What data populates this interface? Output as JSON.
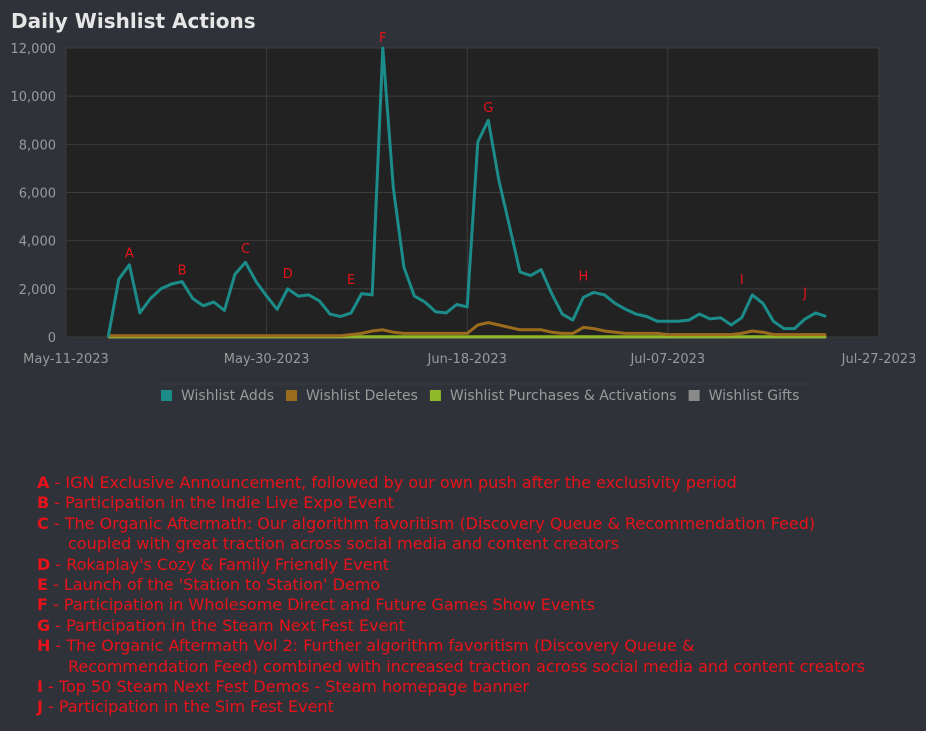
{
  "chart_data": {
    "type": "line",
    "title": "Daily Wishlist Actions",
    "x": [
      "2023-05-15",
      "2023-05-16",
      "2023-05-17",
      "2023-05-18",
      "2023-05-19",
      "2023-05-20",
      "2023-05-21",
      "2023-05-22",
      "2023-05-23",
      "2023-05-24",
      "2023-05-25",
      "2023-05-26",
      "2023-05-27",
      "2023-05-28",
      "2023-05-29",
      "2023-05-30",
      "2023-05-31",
      "2023-06-01",
      "2023-06-02",
      "2023-06-03",
      "2023-06-04",
      "2023-06-05",
      "2023-06-06",
      "2023-06-07",
      "2023-06-08",
      "2023-06-09",
      "2023-06-10",
      "2023-06-11",
      "2023-06-12",
      "2023-06-13",
      "2023-06-14",
      "2023-06-15",
      "2023-06-16",
      "2023-06-17",
      "2023-06-18",
      "2023-06-19",
      "2023-06-20",
      "2023-06-21",
      "2023-06-22",
      "2023-06-23",
      "2023-06-24",
      "2023-06-25",
      "2023-06-26",
      "2023-06-27",
      "2023-06-28",
      "2023-06-29",
      "2023-06-30",
      "2023-07-01",
      "2023-07-02",
      "2023-07-03",
      "2023-07-04",
      "2023-07-05",
      "2023-07-06",
      "2023-07-07",
      "2023-07-08",
      "2023-07-09",
      "2023-07-10",
      "2023-07-11",
      "2023-07-12",
      "2023-07-13",
      "2023-07-14",
      "2023-07-15",
      "2023-07-16",
      "2023-07-17",
      "2023-07-18",
      "2023-07-19",
      "2023-07-20",
      "2023-07-21",
      "2023-07-22"
    ],
    "series": [
      {
        "name": "Wishlist Adds",
        "color": "#1b8c89",
        "values": [
          0,
          2400,
          3000,
          1000,
          1600,
          2000,
          2200,
          2300,
          1600,
          1300,
          1450,
          1100,
          2600,
          3100,
          2300,
          1700,
          1150,
          2000,
          1700,
          1750,
          1500,
          950,
          850,
          1000,
          1800,
          1750,
          12000,
          6200,
          2900,
          1700,
          1450,
          1050,
          1000,
          1350,
          1250,
          8100,
          9000,
          6500,
          4600,
          2700,
          2550,
          2800,
          1800,
          950,
          700,
          1650,
          1850,
          1750,
          1400,
          1150,
          950,
          850,
          650,
          650,
          650,
          700,
          950,
          750,
          800,
          500,
          800,
          1750,
          1400,
          650,
          350,
          350,
          750,
          1000,
          850
        ]
      },
      {
        "name": "Wishlist Deletes",
        "color": "#9c6c1e",
        "values": [
          50,
          50,
          50,
          50,
          50,
          50,
          50,
          50,
          50,
          50,
          50,
          50,
          50,
          50,
          50,
          50,
          50,
          50,
          50,
          50,
          50,
          50,
          50,
          100,
          150,
          250,
          300,
          200,
          150,
          150,
          150,
          150,
          150,
          150,
          150,
          500,
          600,
          500,
          400,
          300,
          300,
          300,
          200,
          150,
          150,
          400,
          350,
          250,
          200,
          150,
          150,
          150,
          150,
          100,
          100,
          100,
          100,
          100,
          100,
          100,
          150,
          250,
          200,
          100,
          100,
          100,
          100,
          100,
          100
        ]
      },
      {
        "name": "Wishlist Purchases & Activations",
        "color": "#8fb82a",
        "values": [
          10,
          10,
          10,
          10,
          10,
          10,
          10,
          10,
          10,
          10,
          10,
          10,
          10,
          10,
          10,
          10,
          10,
          10,
          10,
          10,
          10,
          10,
          10,
          10,
          10,
          10,
          10,
          10,
          10,
          10,
          10,
          10,
          10,
          10,
          10,
          10,
          10,
          10,
          10,
          10,
          10,
          10,
          10,
          10,
          10,
          10,
          10,
          10,
          10,
          10,
          10,
          10,
          10,
          10,
          10,
          10,
          10,
          10,
          10,
          10,
          10,
          10,
          10,
          10,
          10,
          10,
          10,
          10,
          10
        ]
      },
      {
        "name": "Wishlist Gifts",
        "color": "#8a8a8a",
        "values": [
          0,
          0,
          0,
          0,
          0,
          0,
          0,
          0,
          0,
          0,
          0,
          0,
          0,
          0,
          0,
          0,
          0,
          0,
          0,
          0,
          0,
          0,
          0,
          0,
          0,
          0,
          0,
          0,
          0,
          0,
          0,
          0,
          0,
          0,
          0,
          0,
          0,
          0,
          0,
          0,
          0,
          0,
          0,
          0,
          0,
          0,
          0,
          0,
          0,
          0,
          0,
          0,
          0,
          0,
          0,
          0,
          0,
          0,
          0,
          0,
          0,
          0,
          0,
          0,
          0,
          0,
          0,
          0,
          0
        ]
      }
    ],
    "xlim": [
      "2023-05-11",
      "2023-07-27"
    ],
    "xticks": [
      {
        "value": "2023-05-11",
        "label": "May-11-2023"
      },
      {
        "value": "2023-05-30",
        "label": "May-30-2023"
      },
      {
        "value": "2023-06-18",
        "label": "Jun-18-2023"
      },
      {
        "value": "2023-07-07",
        "label": "Jul-07-2023"
      },
      {
        "value": "2023-07-27",
        "label": "Jul-27-2023"
      }
    ],
    "ylim": [
      0,
      12000
    ],
    "yticks": [
      0,
      {
        "value": 2000,
        "label": "2,000"
      },
      {
        "value": 4000,
        "label": "4,000"
      },
      {
        "value": 6000,
        "label": "6,000"
      },
      {
        "value": 8000,
        "label": "8,000"
      },
      {
        "value": 10000,
        "label": "10,000"
      },
      {
        "value": 12000,
        "label": "12,000"
      }
    ],
    "grid": true,
    "annotations": [
      {
        "text": "A",
        "x": "2023-05-17",
        "y": 3500
      },
      {
        "text": "B",
        "x": "2023-05-22",
        "y": 2800
      },
      {
        "text": "C",
        "x": "2023-05-28",
        "y": 3700
      },
      {
        "text": "D",
        "x": "2023-06-01",
        "y": 2650
      },
      {
        "text": "E",
        "x": "2023-06-07",
        "y": 2400
      },
      {
        "text": "F",
        "x": "2023-06-10",
        "y": 12450
      },
      {
        "text": "G",
        "x": "2023-06-20",
        "y": 9550
      },
      {
        "text": "H",
        "x": "2023-06-29",
        "y": 2550
      },
      {
        "text": "I",
        "x": "2023-07-14",
        "y": 2400
      },
      {
        "text": "J",
        "x": "2023-07-20",
        "y": 1850
      }
    ],
    "notes": [
      {
        "key": "A",
        "lines": [
          "- IGN Exclusive Announcement, followed by our own push after the exclusivity period"
        ]
      },
      {
        "key": "B",
        "lines": [
          "- Participation in the Indie Live Expo Event"
        ]
      },
      {
        "key": "C",
        "lines": [
          "- The Organic Aftermath: Our algorithm favoritism (Discovery Queue & Recommendation Feed)",
          "coupled with great traction across social media and content creators"
        ]
      },
      {
        "key": "D",
        "lines": [
          "- Rokaplay's Cozy & Family Friendly Event"
        ]
      },
      {
        "key": "E",
        "lines": [
          "- Launch of the 'Station to Station' Demo"
        ]
      },
      {
        "key": "F",
        "lines": [
          "- Participation in Wholesome Direct and Future Games Show Events"
        ]
      },
      {
        "key": "G",
        "lines": [
          "- Participation in the Steam Next Fest Event"
        ]
      },
      {
        "key": "H",
        "lines": [
          "- The Organic Aftermath Vol 2: Further algorithm favoritism (Discovery Queue &",
          "Recommendation Feed) combined with increased traction across social media and content creators"
        ]
      },
      {
        "key": "I",
        "lines": [
          "- Top 50 Steam Next Fest Demos - Steam homepage banner"
        ]
      },
      {
        "key": "J",
        "lines": [
          "- Participation in the Sim Fest Event"
        ]
      }
    ]
  }
}
